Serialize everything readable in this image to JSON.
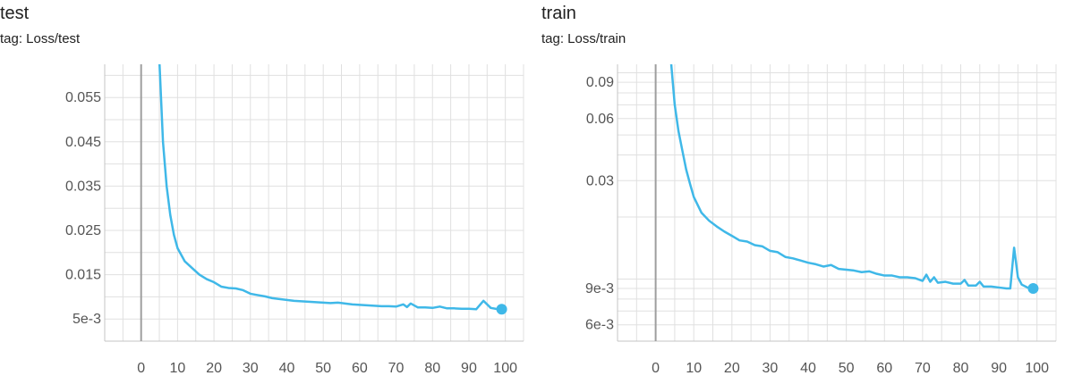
{
  "chart_data": [
    {
      "type": "line",
      "title": "test",
      "subtitle": "tag: Loss/test",
      "xlabel": "",
      "ylabel": "",
      "xlim": [
        -10,
        105
      ],
      "ylim": [
        0.0,
        0.0625
      ],
      "y_scale": "linear",
      "grid": true,
      "x_ticks": [
        0,
        10,
        20,
        30,
        40,
        50,
        60,
        70,
        80,
        90,
        100
      ],
      "y_ticks": [
        {
          "value": 0.005,
          "label": "5e-3"
        },
        {
          "value": 0.015,
          "label": "0.015"
        },
        {
          "value": 0.025,
          "label": "0.025"
        },
        {
          "value": 0.035,
          "label": "0.035"
        },
        {
          "value": 0.045,
          "label": "0.045"
        },
        {
          "value": 0.055,
          "label": "0.055"
        }
      ],
      "y_minor_ticks": [
        0.0,
        0.01,
        0.02,
        0.03,
        0.04,
        0.05,
        0.06
      ],
      "series": [
        {
          "color": "#3fb8e8",
          "x": [
            5,
            6,
            7,
            8,
            9,
            10,
            12,
            14,
            16,
            18,
            20,
            22,
            24,
            26,
            28,
            30,
            32,
            34,
            36,
            38,
            40,
            42,
            44,
            46,
            48,
            50,
            52,
            54,
            56,
            58,
            60,
            62,
            64,
            66,
            68,
            70,
            72,
            73,
            74,
            76,
            78,
            80,
            82,
            84,
            86,
            88,
            90,
            92,
            94,
            96,
            98,
            99
          ],
          "y": [
            0.0635,
            0.045,
            0.035,
            0.0285,
            0.024,
            0.021,
            0.018,
            0.0165,
            0.015,
            0.014,
            0.0133,
            0.0123,
            0.012,
            0.0119,
            0.0115,
            0.0107,
            0.0104,
            0.0101,
            0.0097,
            0.0095,
            0.0093,
            0.0091,
            0.009,
            0.0089,
            0.0088,
            0.0087,
            0.0086,
            0.0087,
            0.0085,
            0.0083,
            0.0082,
            0.0081,
            0.008,
            0.0079,
            0.0079,
            0.0078,
            0.0083,
            0.0077,
            0.0085,
            0.0076,
            0.0076,
            0.0075,
            0.0078,
            0.0074,
            0.0074,
            0.0073,
            0.0073,
            0.0072,
            0.0091,
            0.0075,
            0.0072,
            0.0072
          ]
        }
      ]
    },
    {
      "type": "line",
      "title": "train",
      "subtitle": "tag: Loss/train",
      "xlabel": "",
      "ylabel": "",
      "xlim": [
        -10,
        105
      ],
      "ylim": [
        0.005,
        0.11
      ],
      "y_scale": "log",
      "grid": true,
      "x_ticks": [
        0,
        10,
        20,
        30,
        40,
        50,
        60,
        70,
        80,
        90,
        100
      ],
      "y_ticks": [
        {
          "value": 0.006,
          "label": "6e-3"
        },
        {
          "value": 0.009,
          "label": "9e-3"
        },
        {
          "value": 0.03,
          "label": "0.03"
        },
        {
          "value": 0.06,
          "label": "0.06"
        },
        {
          "value": 0.09,
          "label": "0.09"
        }
      ],
      "y_minor_ticks": [
        0.005,
        0.007,
        0.008,
        0.01,
        0.02,
        0.04,
        0.05,
        0.07,
        0.08,
        0.1
      ],
      "series": [
        {
          "color": "#3fb8e8",
          "x": [
            4,
            5,
            6,
            7,
            8,
            9,
            10,
            12,
            14,
            16,
            18,
            20,
            22,
            24,
            26,
            28,
            30,
            32,
            34,
            36,
            38,
            40,
            42,
            44,
            46,
            48,
            50,
            52,
            54,
            56,
            58,
            60,
            62,
            64,
            66,
            68,
            70,
            71,
            72,
            73,
            74,
            76,
            78,
            80,
            81,
            82,
            84,
            85,
            86,
            88,
            90,
            92,
            93,
            94,
            95,
            96,
            98,
            99
          ],
          "y": [
            0.115,
            0.07,
            0.052,
            0.042,
            0.034,
            0.029,
            0.025,
            0.021,
            0.0192,
            0.018,
            0.017,
            0.0162,
            0.0154,
            0.0152,
            0.0146,
            0.0144,
            0.0137,
            0.0135,
            0.0128,
            0.0126,
            0.0123,
            0.012,
            0.0118,
            0.0115,
            0.0117,
            0.0112,
            0.0111,
            0.011,
            0.0108,
            0.0109,
            0.0106,
            0.0104,
            0.0104,
            0.0102,
            0.0102,
            0.0101,
            0.0098,
            0.0105,
            0.0097,
            0.0102,
            0.0096,
            0.0097,
            0.0095,
            0.0095,
            0.0099,
            0.0093,
            0.0093,
            0.0097,
            0.0092,
            0.0092,
            0.0091,
            0.009,
            0.009,
            0.0142,
            0.0102,
            0.0094,
            0.009,
            0.009
          ]
        }
      ]
    }
  ]
}
